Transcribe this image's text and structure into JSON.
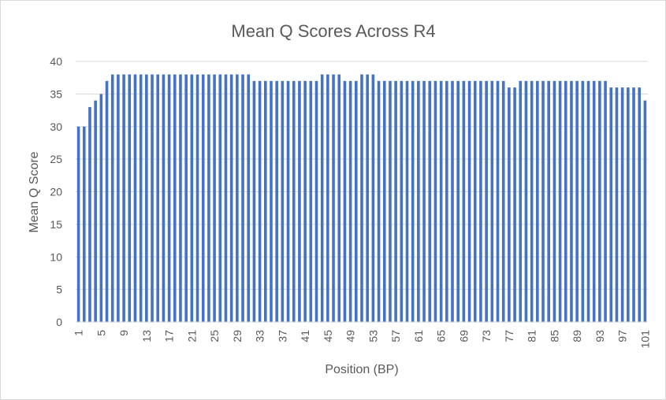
{
  "chart_data": {
    "type": "bar",
    "title": "Mean Q Scores Across R4",
    "xlabel": "Position (BP)",
    "ylabel": "Mean Q Score",
    "ylim": [
      0,
      40
    ],
    "yticks": [
      0,
      5,
      10,
      15,
      20,
      25,
      30,
      35,
      40
    ],
    "grid": true,
    "legend": "none",
    "bar_color": "#4472c4",
    "categories": [
      1,
      2,
      3,
      4,
      5,
      6,
      7,
      8,
      9,
      10,
      11,
      12,
      13,
      14,
      15,
      16,
      17,
      18,
      19,
      20,
      21,
      22,
      23,
      24,
      25,
      26,
      27,
      28,
      29,
      30,
      31,
      32,
      33,
      34,
      35,
      36,
      37,
      38,
      39,
      40,
      41,
      42,
      43,
      44,
      45,
      46,
      47,
      48,
      49,
      50,
      51,
      52,
      53,
      54,
      55,
      56,
      57,
      58,
      59,
      60,
      61,
      62,
      63,
      64,
      65,
      66,
      67,
      68,
      69,
      70,
      71,
      72,
      73,
      74,
      75,
      76,
      77,
      78,
      79,
      80,
      81,
      82,
      83,
      84,
      85,
      86,
      87,
      88,
      89,
      90,
      91,
      92,
      93,
      94,
      95,
      96,
      97,
      98,
      99,
      100,
      101
    ],
    "xtick_labels": [
      "1",
      "5",
      "9",
      "13",
      "17",
      "21",
      "25",
      "29",
      "33",
      "37",
      "41",
      "45",
      "49",
      "53",
      "57",
      "61",
      "65",
      "69",
      "73",
      "77",
      "81",
      "85",
      "89",
      "93",
      "97",
      "101"
    ],
    "values": [
      30,
      30,
      33,
      34,
      35,
      37,
      38,
      38,
      38,
      38,
      38,
      38,
      38,
      38,
      38,
      38,
      38,
      38,
      38,
      38,
      38,
      38,
      38,
      38,
      38,
      38,
      38,
      38,
      38,
      38,
      38,
      37,
      37,
      37,
      37,
      37,
      37,
      37,
      37,
      37,
      37,
      37,
      37,
      38,
      38,
      38,
      38,
      37,
      37,
      37,
      38,
      38,
      38,
      37,
      37,
      37,
      37,
      37,
      37,
      37,
      37,
      37,
      37,
      37,
      37,
      37,
      37,
      37,
      37,
      37,
      37,
      37,
      37,
      37,
      37,
      37,
      36,
      36,
      37,
      37,
      37,
      37,
      37,
      37,
      37,
      37,
      37,
      37,
      37,
      37,
      37,
      37,
      37,
      37,
      36,
      36,
      36,
      36,
      36,
      36,
      34
    ]
  }
}
